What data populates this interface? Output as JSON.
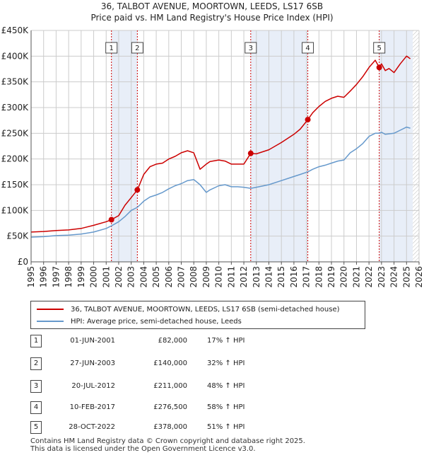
{
  "title_line1": "36, TALBOT AVENUE, MOORTOWN, LEEDS, LS17 6SB",
  "title_line2": "Price paid vs. HM Land Registry's House Price Index (HPI)",
  "colors": {
    "property": "#cc0000",
    "hpi": "#6699cc",
    "shade": "#e8eef8",
    "grid": "#cccccc"
  },
  "chart_data": {
    "type": "line",
    "title": "36, TALBOT AVENUE, MOORTOWN, LEEDS, LS17 6SB — Price paid vs. HM Land Registry's House Price Index (HPI)",
    "xlabel": "",
    "ylabel": "",
    "xlim": [
      1995,
      2026
    ],
    "ylim": [
      0,
      450000
    ],
    "grid": true,
    "x_ticks": [
      "1995",
      "1996",
      "1997",
      "1998",
      "1999",
      "2000",
      "2001",
      "2002",
      "2003",
      "2004",
      "2005",
      "2006",
      "2007",
      "2008",
      "2009",
      "2010",
      "2011",
      "2012",
      "2013",
      "2014",
      "2015",
      "2016",
      "2017",
      "2018",
      "2019",
      "2020",
      "2021",
      "2022",
      "2023",
      "2024",
      "2025",
      "2026"
    ],
    "y_ticks": [
      {
        "value": 0,
        "label": "£0"
      },
      {
        "value": 50000,
        "label": "£50K"
      },
      {
        "value": 100000,
        "label": "£100K"
      },
      {
        "value": 150000,
        "label": "£150K"
      },
      {
        "value": 200000,
        "label": "£200K"
      },
      {
        "value": 250000,
        "label": "£250K"
      },
      {
        "value": 300000,
        "label": "£300K"
      },
      {
        "value": 350000,
        "label": "£350K"
      },
      {
        "value": 400000,
        "label": "£400K"
      },
      {
        "value": 450000,
        "label": "£450K"
      }
    ],
    "shaded_ranges": [
      [
        2001.42,
        2003.49
      ],
      [
        2012.55,
        2017.11
      ],
      [
        2022.82,
        2025.5
      ]
    ],
    "future_hatch_from": 2025.5,
    "series": [
      {
        "name": "36, TALBOT AVENUE, MOORTOWN, LEEDS, LS17 6SB (semi-detached house)",
        "x": [
          1995,
          1996,
          1997,
          1998,
          1999,
          2000,
          2001,
          2001.42,
          2002,
          2002.5,
          2003,
          2003.49,
          2004,
          2004.5,
          2005,
          2005.5,
          2006,
          2006.5,
          2007,
          2007.5,
          2008,
          2008.5,
          2009,
          2009.3,
          2010,
          2010.5,
          2011,
          2011.5,
          2012,
          2012.55,
          2013,
          2014,
          2015,
          2016,
          2016.5,
          2017.11,
          2017.5,
          2018,
          2018.5,
          2019,
          2019.5,
          2020,
          2020.5,
          2021,
          2021.5,
          2022,
          2022.5,
          2022.82,
          2023,
          2023.3,
          2023.6,
          2024,
          2024.5,
          2025,
          2025.3
        ],
        "values": [
          58000,
          59000,
          61000,
          62000,
          65000,
          71000,
          78000,
          82000,
          90000,
          110000,
          125000,
          140000,
          170000,
          185000,
          190000,
          192000,
          200000,
          205000,
          212000,
          216000,
          212000,
          180000,
          190000,
          195000,
          198000,
          196000,
          190000,
          190000,
          190000,
          211000,
          210000,
          218000,
          232000,
          248000,
          258000,
          276500,
          290000,
          302000,
          312000,
          318000,
          322000,
          320000,
          332000,
          345000,
          360000,
          378000,
          392000,
          378000,
          385000,
          372000,
          376000,
          368000,
          385000,
          400000,
          395000
        ]
      },
      {
        "name": "HPI: Average price, semi-detached house, Leeds",
        "x": [
          1995,
          1996,
          1997,
          1998,
          1999,
          2000,
          2001,
          2001.42,
          2002,
          2002.5,
          2003,
          2003.49,
          2004,
          2004.5,
          2005,
          2005.5,
          2006,
          2006.5,
          2007,
          2007.5,
          2008,
          2008.5,
          2009,
          2009.3,
          2010,
          2010.5,
          2011,
          2011.5,
          2012,
          2012.55,
          2013,
          2014,
          2015,
          2016,
          2016.5,
          2017.11,
          2017.5,
          2018,
          2018.5,
          2019,
          2019.5,
          2020,
          2020.5,
          2021,
          2021.5,
          2022,
          2022.5,
          2022.82,
          2023,
          2023.3,
          2023.6,
          2024,
          2024.5,
          2025,
          2025.3
        ],
        "values": [
          48000,
          49000,
          51000,
          52000,
          54000,
          58000,
          65000,
          70000,
          78000,
          88000,
          100000,
          106000,
          118000,
          126000,
          130000,
          135000,
          142000,
          148000,
          152000,
          158000,
          160000,
          150000,
          135000,
          140000,
          148000,
          150000,
          146000,
          146000,
          145000,
          143000,
          145000,
          150000,
          158000,
          166000,
          170000,
          175000,
          180000,
          185000,
          188000,
          192000,
          196000,
          198000,
          212000,
          220000,
          230000,
          244000,
          250000,
          250000,
          252000,
          248000,
          249000,
          250000,
          256000,
          262000,
          260000
        ]
      }
    ],
    "sales": [
      {
        "n": "1",
        "x": 2001.42,
        "value": 82000
      },
      {
        "n": "2",
        "x": 2003.49,
        "value": 140000
      },
      {
        "n": "3",
        "x": 2012.55,
        "value": 211000
      },
      {
        "n": "4",
        "x": 2017.11,
        "value": 276500
      },
      {
        "n": "5",
        "x": 2022.82,
        "value": 378000
      }
    ]
  },
  "legend": {
    "property_label": "36, TALBOT AVENUE, MOORTOWN, LEEDS, LS17 6SB (semi-detached house)",
    "hpi_label": "HPI: Average price, semi-detached house, Leeds"
  },
  "sales_table": [
    {
      "n": "1",
      "date": "01-JUN-2001",
      "price": "£82,000",
      "hpi": "17% ↑ HPI"
    },
    {
      "n": "2",
      "date": "27-JUN-2003",
      "price": "£140,000",
      "hpi": "32% ↑ HPI"
    },
    {
      "n": "3",
      "date": "20-JUL-2012",
      "price": "£211,000",
      "hpi": "48% ↑ HPI"
    },
    {
      "n": "4",
      "date": "10-FEB-2017",
      "price": "£276,500",
      "hpi": "58% ↑ HPI"
    },
    {
      "n": "5",
      "date": "28-OCT-2022",
      "price": "£378,000",
      "hpi": "51% ↑ HPI"
    }
  ],
  "footer_line1": "Contains HM Land Registry data © Crown copyright and database right 2025.",
  "footer_line2": "This data is licensed under the Open Government Licence v3.0."
}
